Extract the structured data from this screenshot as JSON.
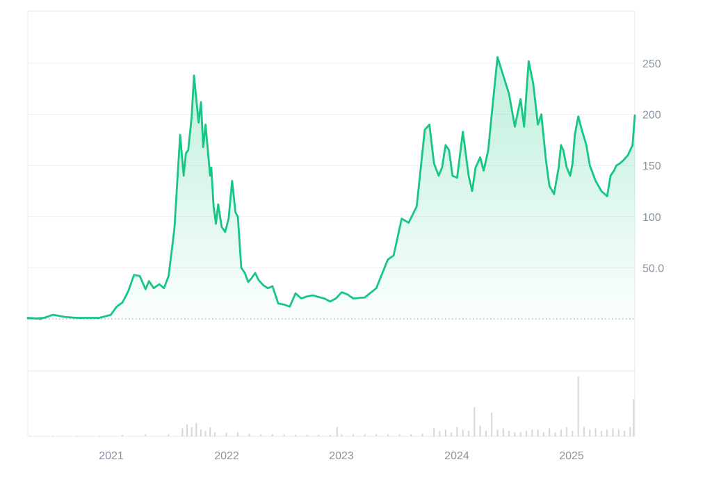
{
  "colors": {
    "line": "#16c784",
    "pre_baseline_line": "#ea3943",
    "grid": "#eeeff2",
    "frame": "#e8eaed",
    "baseline_dots": "#8a8f99",
    "tick_text": "#8b93a1",
    "volume": "#d3d6dc"
  },
  "chart_data": {
    "type": "area",
    "title": "",
    "xlabel": "",
    "ylabel": "",
    "x_ticks": [
      "2021",
      "2022",
      "2023",
      "2024",
      "2025"
    ],
    "y_ticks": [
      "250",
      "200",
      "150",
      "100",
      "50.0"
    ],
    "y_tick_values": [
      250,
      200,
      150,
      100,
      50
    ],
    "ylim": [
      -50,
      300
    ],
    "baseline_value": 0,
    "grid": true,
    "series": [
      {
        "x": [
          2020.28,
          2020.35,
          2020.42,
          2020.5,
          2020.55,
          2020.6,
          2020.7,
          2020.8,
          2020.9,
          2021.0,
          2021.05,
          2021.1,
          2021.15,
          2021.2,
          2021.25,
          2021.3,
          2021.33,
          2021.37,
          2021.42,
          2021.46,
          2021.5,
          2021.55,
          2021.6,
          2021.63,
          2021.65,
          2021.67,
          2021.7,
          2021.72,
          2021.74,
          2021.76,
          2021.78,
          2021.8,
          2021.82,
          2021.84,
          2021.86,
          2021.87,
          2021.89,
          2021.91,
          2021.93,
          2021.96,
          2021.99,
          2022.02,
          2022.05,
          2022.08,
          2022.1,
          2022.13,
          2022.16,
          2022.19,
          2022.22,
          2022.25,
          2022.28,
          2022.32,
          2022.36,
          2022.4,
          2022.45,
          2022.5,
          2022.55,
          2022.6,
          2022.65,
          2022.7,
          2022.75,
          2022.85,
          2022.9,
          2022.95,
          2023.0,
          2023.05,
          2023.1,
          2023.2,
          2023.3,
          2023.4,
          2023.45,
          2023.52,
          2023.58,
          2023.65,
          2023.72,
          2023.76,
          2023.8,
          2023.84,
          2023.87,
          2023.9,
          2023.93,
          2023.96,
          2024.0,
          2024.05,
          2024.1,
          2024.13,
          2024.16,
          2024.2,
          2024.23,
          2024.27,
          2024.3,
          2024.35,
          2024.4,
          2024.45,
          2024.5,
          2024.55,
          2024.58,
          2024.62,
          2024.66,
          2024.7,
          2024.73,
          2024.77,
          2024.8,
          2024.84,
          2024.88,
          2024.9,
          2024.92,
          2024.95,
          2024.98,
          2025.0,
          2025.02,
          2025.05,
          2025.08,
          2025.12,
          2025.15,
          2025.2,
          2025.25,
          2025.3,
          2025.33,
          2025.36,
          2025.38,
          2025.41,
          2025.44,
          2025.48,
          2025.52,
          2025.54
        ],
        "values": [
          1,
          0.5,
          1,
          4,
          3,
          2,
          1,
          1,
          1,
          4,
          12,
          16,
          27,
          43,
          42,
          29,
          37,
          30,
          34,
          30,
          42,
          88,
          180,
          140,
          162,
          165,
          198,
          238,
          215,
          192,
          212,
          168,
          190,
          165,
          140,
          148,
          110,
          93,
          112,
          90,
          85,
          98,
          135,
          104,
          100,
          50,
          45,
          36,
          40,
          45,
          38,
          33,
          30,
          32,
          15,
          14,
          12,
          25,
          20,
          22,
          23,
          20,
          17,
          20,
          26,
          24,
          20,
          21,
          30,
          58,
          62,
          98,
          94,
          110,
          185,
          190,
          152,
          140,
          148,
          170,
          165,
          140,
          138,
          183,
          140,
          125,
          148,
          158,
          145,
          165,
          200,
          256,
          238,
          220,
          188,
          215,
          188,
          252,
          230,
          190,
          200,
          155,
          130,
          122,
          148,
          170,
          165,
          148,
          140,
          152,
          180,
          198,
          185,
          170,
          150,
          135,
          125,
          120,
          140,
          145,
          150,
          152,
          155,
          160,
          170,
          199
        ]
      }
    ],
    "volume": {
      "x": [
        2020.3,
        2020.5,
        2020.7,
        2020.9,
        2021.1,
        2021.3,
        2021.5,
        2021.62,
        2021.66,
        2021.7,
        2021.74,
        2021.78,
        2021.82,
        2021.86,
        2021.9,
        2022.0,
        2022.1,
        2022.2,
        2022.3,
        2022.4,
        2022.5,
        2022.6,
        2022.7,
        2022.8,
        2022.9,
        2022.96,
        2023.0,
        2023.1,
        2023.2,
        2023.3,
        2023.4,
        2023.5,
        2023.6,
        2023.7,
        2023.8,
        2023.85,
        2023.9,
        2023.95,
        2024.0,
        2024.05,
        2024.1,
        2024.15,
        2024.2,
        2024.25,
        2024.3,
        2024.35,
        2024.4,
        2024.45,
        2024.5,
        2024.55,
        2024.6,
        2024.65,
        2024.7,
        2024.75,
        2024.8,
        2024.85,
        2024.9,
        2024.95,
        2025.0,
        2025.05,
        2025.1,
        2025.15,
        2025.2,
        2025.25,
        2025.3,
        2025.35,
        2025.4,
        2025.45,
        2025.5,
        2025.53
      ],
      "values": [
        1,
        1,
        1,
        1,
        2,
        3,
        3,
        12,
        18,
        14,
        20,
        10,
        8,
        14,
        6,
        5,
        6,
        4,
        3,
        3,
        3,
        2,
        2,
        2,
        2,
        14,
        3,
        3,
        3,
        3,
        3,
        3,
        3,
        4,
        12,
        8,
        10,
        6,
        14,
        10,
        8,
        44,
        16,
        8,
        36,
        10,
        12,
        8,
        6,
        6,
        8,
        10,
        10,
        6,
        12,
        6,
        10,
        14,
        8,
        90,
        14,
        10,
        12,
        8,
        10,
        12,
        10,
        8,
        14,
        56
      ]
    }
  }
}
